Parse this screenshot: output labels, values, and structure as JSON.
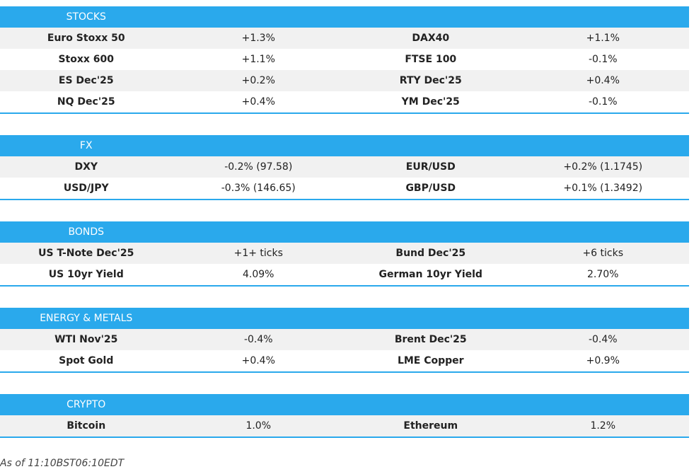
{
  "sections": [
    {
      "title": "STOCKS",
      "rows": [
        [
          "Euro Stoxx 50",
          "+1.3%",
          "DAX40",
          "+1.1%"
        ],
        [
          "Stoxx 600",
          "+1.1%",
          "FTSE 100",
          "-0.1%"
        ],
        [
          "ES Dec'25",
          "+0.2%",
          "RTY Dec'25",
          "+0.4%"
        ],
        [
          "NQ Dec'25",
          "+0.4%",
          "YM Dec'25",
          "-0.1%"
        ]
      ]
    },
    {
      "title": "FX",
      "rows": [
        [
          "DXY",
          "-0.2% (97.58)",
          "EUR/USD",
          "+0.2% (1.1745)"
        ],
        [
          "USD/JPY",
          "-0.3% (146.65)",
          "GBP/USD",
          "+0.1% (1.3492)"
        ]
      ]
    },
    {
      "title": "BONDS",
      "rows": [
        [
          "US T-Note Dec'25",
          "+1+ ticks",
          "Bund Dec'25",
          "+6 ticks"
        ],
        [
          "US 10yr Yield",
          "4.09%",
          "German 10yr Yield",
          "2.70%"
        ]
      ]
    },
    {
      "title": "ENERGY & METALS",
      "rows": [
        [
          "WTI Nov'25",
          "-0.4%",
          "Brent Dec'25",
          "-0.4%"
        ],
        [
          "Spot Gold",
          "+0.4%",
          "LME Copper",
          "+0.9%"
        ]
      ]
    },
    {
      "title": "CRYPTO",
      "rows": [
        [
          "Bitcoin",
          "1.0%",
          "Ethereum",
          "1.2%"
        ]
      ]
    }
  ],
  "footer": "As of 11:10BST06:10EDT"
}
